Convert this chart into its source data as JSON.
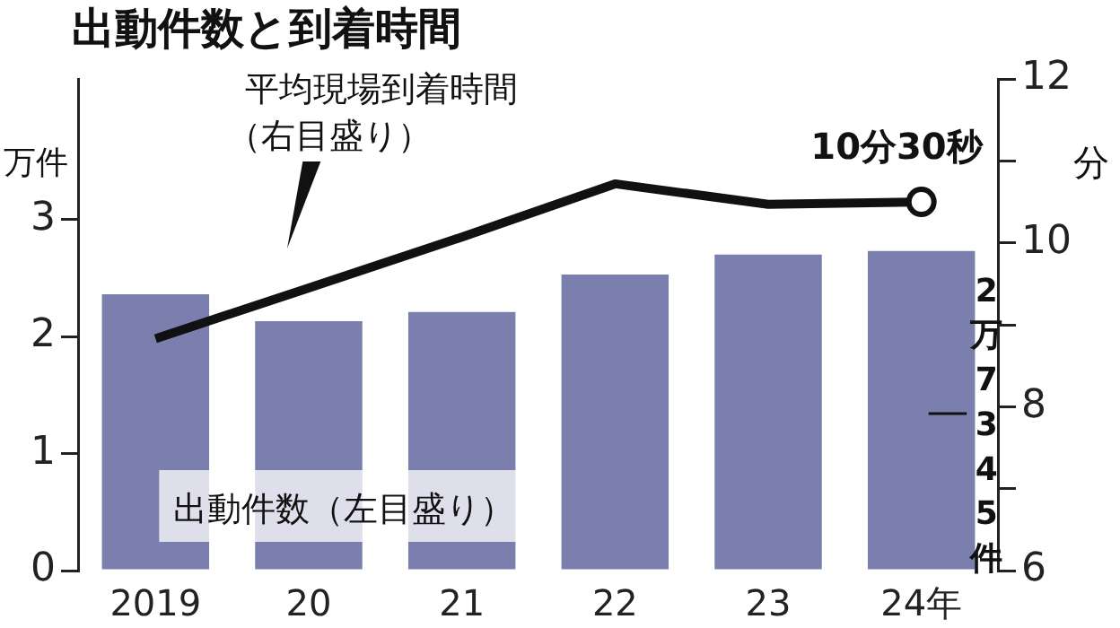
{
  "chart_data": {
    "type": "bar",
    "title": "出動件数と到着時間",
    "categories": [
      "2019",
      "20",
      "21",
      "22",
      "23",
      "24年"
    ],
    "series": [
      {
        "name": "出動件数（左目盛り）",
        "color": "#7b7fae",
        "values": [
          2.36,
          2.13,
          2.21,
          2.53,
          2.7,
          2.73
        ]
      },
      {
        "type": "line",
        "name": "平均現場到着時間（右目盛り）",
        "color": "#111111",
        "axis": "y2",
        "values": [
          8.83,
          9.45,
          10.07,
          10.72,
          10.47,
          10.5
        ]
      }
    ],
    "ylabel": "万件",
    "y2label": "分",
    "ylim": [
      0,
      4.2
    ],
    "yticks": [
      0,
      1,
      2,
      3
    ],
    "y2lim": [
      6,
      12
    ],
    "y2ticks": [
      6,
      {
        "value": 7,
        "label": null
      },
      8,
      {
        "value": 9,
        "label": null
      },
      10,
      {
        "value": 11,
        "label": null
      },
      12
    ],
    "annotations": [
      "10分30秒",
      "2万7345件"
    ],
    "grid": false,
    "legend": false
  }
}
